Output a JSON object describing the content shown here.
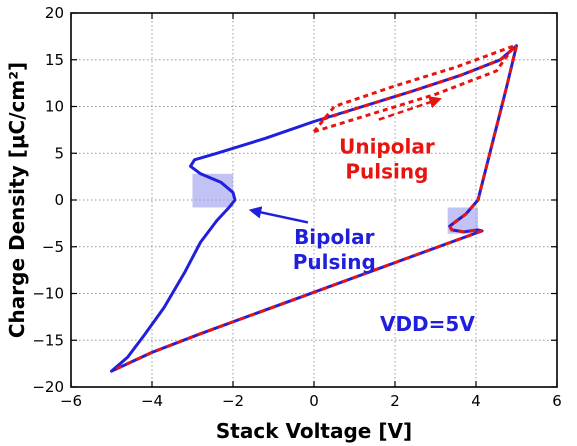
{
  "chart_data": {
    "type": "line",
    "xlabel": "Stack Voltage [V]",
    "ylabel": "Charge Density [μC/cm²]",
    "xlim": [
      -6,
      6
    ],
    "ylim": [
      -20,
      20
    ],
    "xticks": [
      -6,
      -4,
      -2,
      0,
      2,
      4,
      6
    ],
    "yticks": [
      -20,
      -15,
      -10,
      -5,
      0,
      5,
      10,
      15,
      20
    ],
    "xtick_labels": [
      "−6",
      "−4",
      "−2",
      "0",
      "2",
      "4",
      "6"
    ],
    "ytick_labels": [
      "−20",
      "−15",
      "−10",
      "−5",
      "0",
      "5",
      "10",
      "15",
      "20"
    ],
    "grid": true,
    "series": [
      {
        "name": "Bipolar Pulsing",
        "color": "#1f1fdc",
        "style": "solid",
        "x": [
          -5.0,
          -4.6,
          -4.2,
          -3.7,
          -3.2,
          -2.8,
          -2.4,
          -2.1,
          -1.95,
          -2.0,
          -2.3,
          -2.8,
          -3.05,
          -2.95,
          -2.4,
          -1.2,
          0.0,
          1.2,
          2.4,
          3.6,
          4.6,
          5.0,
          4.75,
          4.4,
          4.05,
          3.75,
          3.5,
          3.35,
          3.4,
          3.7,
          4.05,
          4.15,
          3.2,
          2.0,
          0.8,
          -0.4,
          -1.6,
          -2.8,
          -4.0,
          -5.0
        ],
        "y": [
          -18.3,
          -16.8,
          -14.5,
          -11.5,
          -7.8,
          -4.5,
          -2.2,
          -0.8,
          0.0,
          0.8,
          1.9,
          2.8,
          3.6,
          4.3,
          5.0,
          6.6,
          8.4,
          10.0,
          11.6,
          13.3,
          15.0,
          16.5,
          12.0,
          6.0,
          0.0,
          -1.5,
          -2.3,
          -2.8,
          -3.2,
          -3.4,
          -3.2,
          -3.3,
          -4.8,
          -6.7,
          -8.6,
          -10.5,
          -12.4,
          -14.3,
          -16.3,
          -18.3
        ]
      },
      {
        "name": "Unipolar Pulsing",
        "color": "#e8140f",
        "style": "dashed",
        "x": [
          0.0,
          1.5,
          3.0,
          4.5,
          4.95,
          3.5,
          2.0,
          0.5,
          0.0
        ],
        "y": [
          7.3,
          9.3,
          11.3,
          13.8,
          16.5,
          14.2,
          12.2,
          10.0,
          7.3
        ]
      },
      {
        "name": "",
        "color": "#e8140f",
        "style": "dashed",
        "x": [
          4.95,
          3.9,
          2.6,
          1.3,
          0.0,
          -1.3,
          -2.6,
          -3.9,
          -5.0
        ],
        "y": [
          16.5,
          14.9,
          12.9,
          10.8,
          8.7,
          -12.4,
          -14.3,
          -16.3,
          -18.3
        ]
      }
    ],
    "lower_branch_overlay": {
      "x": [
        4.15,
        3.2,
        2.0,
        0.8,
        -0.4,
        -1.6,
        -2.8,
        -4.0,
        -5.0
      ],
      "y": [
        -3.3,
        -4.8,
        -6.7,
        -8.6,
        -10.5,
        -12.4,
        -14.3,
        -16.3,
        -18.3
      ]
    },
    "right_branch_overlay": {
      "x": [
        5.0,
        4.75,
        4.4,
        4.05,
        3.75,
        3.5,
        3.35,
        3.4,
        3.7,
        4.05,
        4.15
      ],
      "y": [
        16.5,
        12.0,
        6.0,
        0.0,
        -1.5,
        -2.3,
        -2.8,
        -3.2,
        -3.4,
        -3.2,
        -3.3
      ]
    },
    "upper_branch_overlay": {
      "x": [
        0.2,
        1.2,
        2.4,
        3.6,
        4.6,
        5.0
      ],
      "y": [
        8.6,
        10.0,
        11.6,
        13.3,
        15.0,
        16.5
      ]
    },
    "highlight_regions": [
      {
        "x": [
          -3.0,
          -2.0
        ],
        "y": [
          -0.8,
          2.8
        ],
        "color": "#9999ee"
      },
      {
        "x": [
          3.3,
          4.05
        ],
        "y": [
          -3.6,
          -0.8
        ],
        "color": "#9999ee"
      }
    ],
    "annotations": [
      {
        "text": "Unipolar",
        "color": "#e8140f",
        "x": 1.8,
        "y": 5.0
      },
      {
        "text": "Pulsing",
        "color": "#e8140f",
        "x": 1.8,
        "y": 2.3
      },
      {
        "text": "Bipolar",
        "color": "#1f1fdc",
        "x": 0.5,
        "y": -4.7
      },
      {
        "text": "Pulsing",
        "color": "#1f1fdc",
        "x": 0.5,
        "y": -7.4
      },
      {
        "text": "VDD=5V",
        "color": "#1f1fdc",
        "x": 2.8,
        "y": -14.0
      }
    ],
    "arrows": [
      {
        "color": "#1f1fdc",
        "style": "solid",
        "from": [
          -0.15,
          -2.4
        ],
        "to": [
          -1.55,
          -1.1
        ]
      },
      {
        "color": "#e8140f",
        "style": "dashed",
        "from": [
          1.6,
          8.6
        ],
        "to": [
          3.1,
          10.8
        ]
      }
    ]
  }
}
